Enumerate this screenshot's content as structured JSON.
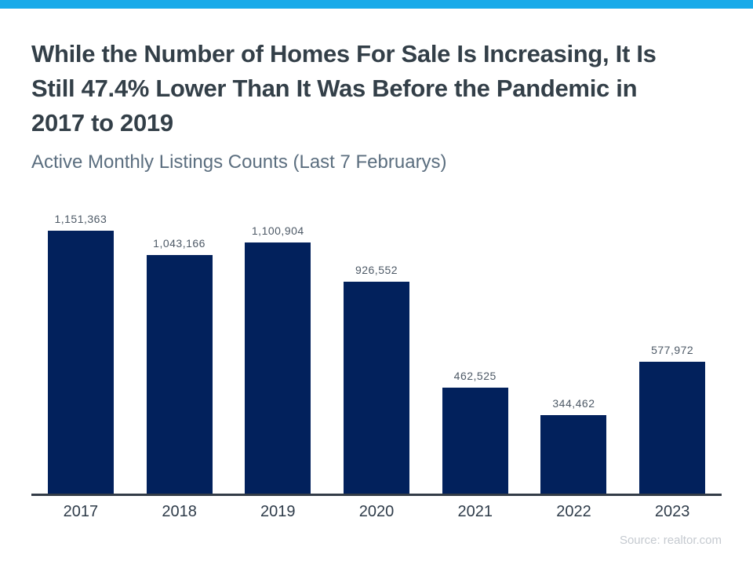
{
  "page": {
    "accent_bar_color": "#18aae9",
    "title": "While the Number of Homes For Sale Is Increasing, It Is Still 47.4% Lower Than It Was Before the Pandemic in 2017 to 2019",
    "subtitle": "Active Monthly Listings Counts (Last 7 Februarys)",
    "source": "Source: realtor.com"
  },
  "chart_data": {
    "type": "bar",
    "title": "Active Monthly Listings Counts (Last 7 Februarys)",
    "categories": [
      "2017",
      "2018",
      "2019",
      "2020",
      "2021",
      "2022",
      "2023"
    ],
    "values": [
      1151363,
      1043166,
      1100904,
      926552,
      462525,
      344462,
      577972
    ],
    "value_labels": [
      "1,151,363",
      "1,043,166",
      "1,100,904",
      "926,552",
      "462,525",
      "344,462",
      "577,972"
    ],
    "bar_color": "#02215c",
    "axis_color": "#333c47",
    "xlabel": "",
    "ylabel": "",
    "ylim": [
      0,
      1151363
    ],
    "grid": false,
    "legend": false,
    "data_labels": "above-bars"
  }
}
